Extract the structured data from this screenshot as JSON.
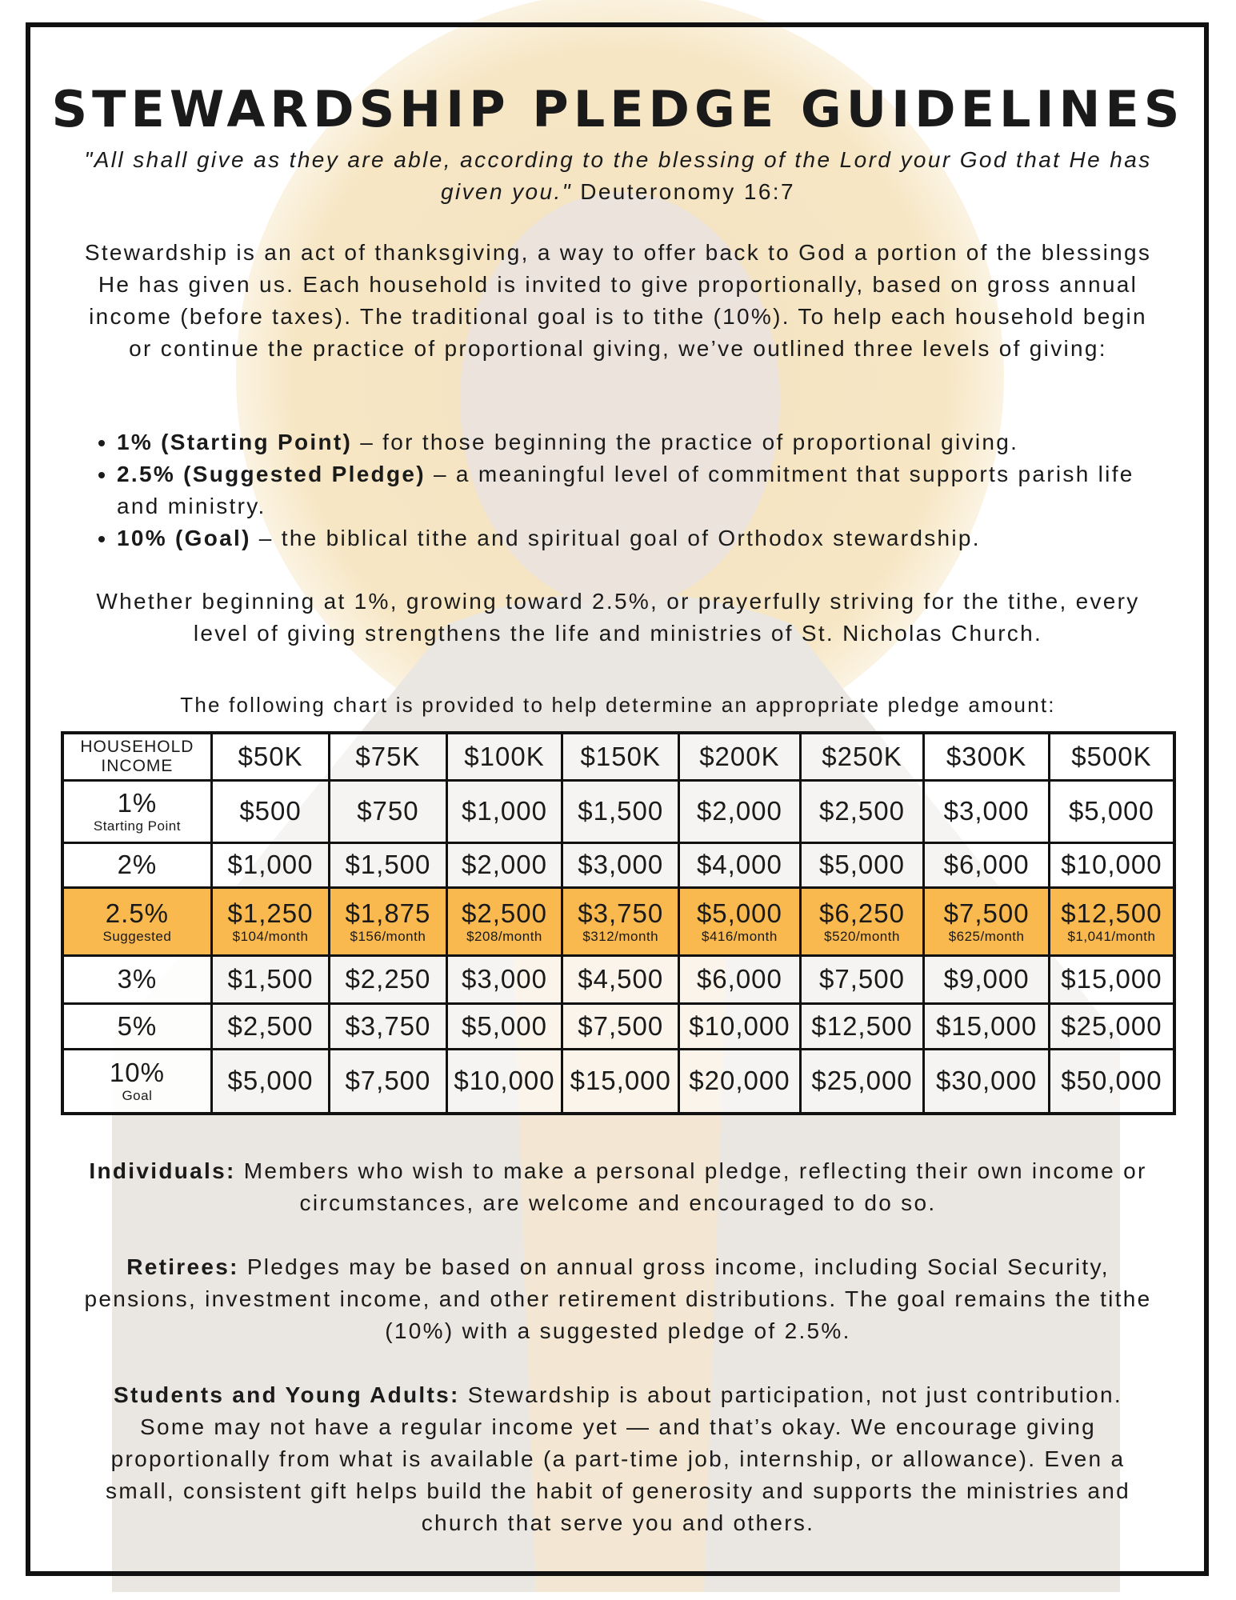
{
  "title": "STEWARDSHIP PLEDGE GUIDELINES",
  "quote": {
    "text": "\"All shall give as they are able, according to the blessing of the Lord your God that He has given you.\"",
    "citation": "Deuteronomy 16:7"
  },
  "intro": "Stewardship is an act of thanksgiving, a way to offer back to God a portion of the blessings He has given us. Each household is invited to give proportionally, based on gross annual income (before taxes). The traditional goal is to tithe (10%). To help each household begin or continue the practice of proportional giving, we’ve outlined three levels of giving:",
  "levels": [
    {
      "label": "1% (Starting Point)",
      "text": " – for those beginning the practice of proportional giving."
    },
    {
      "label": "2.5% (Suggested Pledge)",
      "text": " – a meaningful level of commitment that supports parish life and ministry."
    },
    {
      "label": "10% (Goal)",
      "text": " – the biblical tithe and spiritual goal of Orthodox stewardship."
    }
  ],
  "closing": "Whether beginning at 1%, growing toward 2.5%, or prayerfully striving for the tithe, every level of giving strengthens the life and ministries of St. Nicholas Church.",
  "chart_caption": "The following chart is provided to help determine an appropriate pledge amount:",
  "table": {
    "header_label": "HOUSEHOLD INCOME",
    "columns": [
      "$50K",
      "$75K",
      "$100K",
      "$150K",
      "$200K",
      "$250K",
      "$300K",
      "$500K"
    ],
    "rows": [
      {
        "pct": "1%",
        "sub": "Starting Point",
        "values": [
          "$500",
          "$750",
          "$1,000",
          "$1,500",
          "$2,000",
          "$2,500",
          "$3,000",
          "$5,000"
        ]
      },
      {
        "pct": "2%",
        "sub": "",
        "values": [
          "$1,000",
          "$1,500",
          "$2,000",
          "$3,000",
          "$4,000",
          "$5,000",
          "$6,000",
          "$10,000"
        ]
      },
      {
        "pct": "2.5%",
        "sub": "Suggested",
        "highlight": true,
        "values": [
          "$1,250",
          "$1,875",
          "$2,500",
          "$3,750",
          "$5,000",
          "$6,250",
          "$7,500",
          "$12,500"
        ],
        "monthly": [
          "$104/month",
          "$156/month",
          "$208/month",
          "$312/month",
          "$416/month",
          "$520/month",
          "$625/month",
          "$1,041/month"
        ]
      },
      {
        "pct": "3%",
        "sub": "",
        "values": [
          "$1,500",
          "$2,250",
          "$3,000",
          "$4,500",
          "$6,000",
          "$7,500",
          "$9,000",
          "$15,000"
        ]
      },
      {
        "pct": "5%",
        "sub": "",
        "values": [
          "$2,500",
          "$3,750",
          "$5,000",
          "$7,500",
          "$10,000",
          "$12,500",
          "$15,000",
          "$25,000"
        ]
      },
      {
        "pct": "10%",
        "sub": "Goal",
        "values": [
          "$5,000",
          "$7,500",
          "$10,000",
          "$15,000",
          "$20,000",
          "$25,000",
          "$30,000",
          "$50,000"
        ]
      }
    ],
    "highlight_color": "#f9b94f"
  },
  "sections": [
    {
      "label": "Individuals:",
      "text": " Members who wish to make a personal pledge, reflecting their own income or circumstances, are welcome and encouraged to do so."
    },
    {
      "label": "Retirees:",
      "text": " Pledges may be based on annual gross income, including Social Security, pensions, investment income, and other retirement distributions. The goal remains the tithe (10%) with a suggested pledge of 2.5%."
    },
    {
      "label": "Students and Young Adults:",
      "text": " Stewardship is about participation, not just contribution. Some may not have a regular income yet — and that’s okay. We encourage giving proportionally from what is available (a part-time job, internship, or allowance). Even a small, consistent gift helps build the habit of generosity and supports the ministries and church that serve you and others."
    }
  ]
}
